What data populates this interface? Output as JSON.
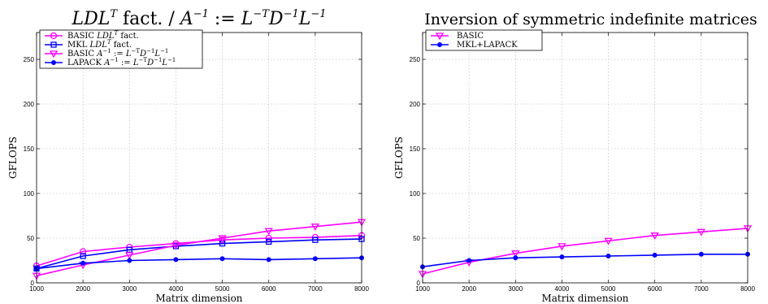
{
  "chart_data": [
    {
      "type": "line",
      "title": "LDL^T fact. / A^-1 := L^-T D^-1 L^-1",
      "xlabel": "Matrix dimension",
      "ylabel": "GFLOPS",
      "xlim": [
        1000,
        8000
      ],
      "ylim": [
        0,
        280
      ],
      "xticks": [
        "1000",
        "2000",
        "3000",
        "4000",
        "5000",
        "6000",
        "7000",
        "8000"
      ],
      "yticks": [
        "0",
        "50",
        "100",
        "150",
        "200",
        "250"
      ],
      "grid": true,
      "legend_position": "top-left",
      "x": [
        1000,
        2000,
        3000,
        4000,
        5000,
        6000,
        7000,
        8000
      ],
      "series": [
        {
          "name": "BASIC LDL^T fact.",
          "color": "#ff00ff",
          "marker": "circle",
          "values": [
            19,
            35,
            40,
            44,
            48,
            50,
            51,
            53
          ]
        },
        {
          "name": "MKL LDL^T fact.",
          "color": "#0000ff",
          "marker": "square",
          "values": [
            16,
            30,
            37,
            41,
            44,
            46,
            48,
            49
          ]
        },
        {
          "name": "BASIC A^-1 := L^-T D^-1 L^-1",
          "color": "#ff00ff",
          "marker": "triangle-down",
          "values": [
            8,
            20,
            31,
            42,
            50,
            58,
            63,
            68
          ]
        },
        {
          "name": "LAPACK A^-1 := L^-T D^-1 L^-1",
          "color": "#0000ff",
          "marker": "dot",
          "values": [
            16,
            22,
            25,
            26,
            27,
            26,
            27,
            28
          ]
        }
      ]
    },
    {
      "type": "line",
      "title": "Inversion of symmetric indefinite matrices",
      "xlabel": "Matrix dimension",
      "ylabel": "GFLOPS",
      "xlim": [
        1000,
        8000
      ],
      "ylim": [
        0,
        280
      ],
      "xticks": [
        "1000",
        "2000",
        "3000",
        "4000",
        "5000",
        "6000",
        "7000",
        "8000"
      ],
      "yticks": [
        "0",
        "50",
        "100",
        "150",
        "200",
        "250"
      ],
      "grid": true,
      "legend_position": "top-left",
      "x": [
        1000,
        2000,
        3000,
        4000,
        5000,
        6000,
        7000,
        8000
      ],
      "series": [
        {
          "name": "BASIC",
          "color": "#ff00ff",
          "marker": "triangle-down",
          "values": [
            10,
            23,
            33,
            41,
            47,
            53,
            57,
            61
          ]
        },
        {
          "name": "MKL+LAPACK",
          "color": "#0000ff",
          "marker": "dot",
          "values": [
            18,
            25,
            28,
            29,
            30,
            31,
            32,
            32
          ]
        }
      ]
    }
  ]
}
